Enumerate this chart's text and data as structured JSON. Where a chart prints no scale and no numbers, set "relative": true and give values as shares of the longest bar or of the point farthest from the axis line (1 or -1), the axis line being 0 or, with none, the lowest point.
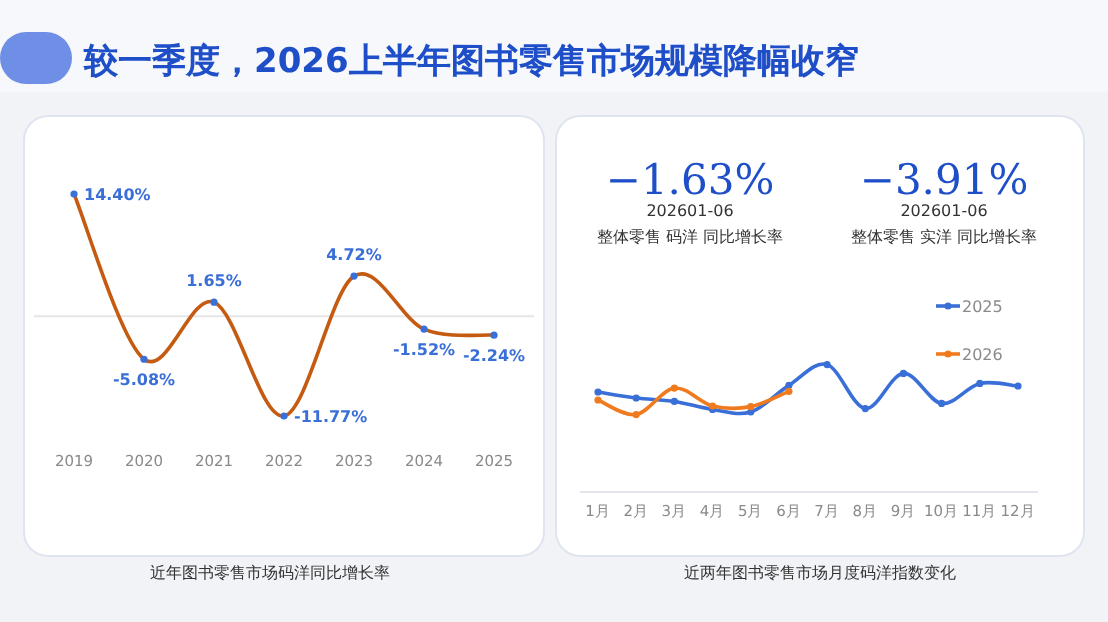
{
  "chart_data": [
    {
      "type": "line",
      "title": "较一季度，2026上半年图书零售市场规模降幅收窄",
      "categories": [
        "2019",
        "2020",
        "2021",
        "2022",
        "2023",
        "2024",
        "2025"
      ],
      "series": [
        {
          "color": "#c55a11",
          "values": [
            14.4,
            -5.08,
            1.65,
            -11.77,
            4.72,
            -1.52,
            -2.24
          ],
          "value_labels": [
            "14.40%",
            "-5.08%",
            "1.65%",
            "-11.77%",
            "4.72%",
            "-1.52%",
            "-2.24%"
          ]
        }
      ],
      "marker": "circle",
      "ref_lines": [
        {
          "axis": "y",
          "value": 0,
          "color": "#e6e6e6"
        }
      ],
      "annotations": [
        "近年图书零售市场码洋同比增长率"
      ]
    },
    {
      "type": "other",
      "annotations": [
        "−1.63%",
        "202601-06",
        "整体零售 码洋 同比增长率",
        "−3.91%",
        "202601-06",
        "整体零售 实洋 同比增长率"
      ]
    },
    {
      "type": "line",
      "relative": true,
      "categories": [
        "1月",
        "2月",
        "3月",
        "4月",
        "5月",
        "6月",
        "7月",
        "8月",
        "9月",
        "10月",
        "11月",
        "12月"
      ],
      "series": [
        {
          "name": "2025",
          "color": "#3a6fd8",
          "values": [
            0.785,
            0.738,
            0.711,
            0.648,
            0.628,
            0.837,
            1,
            0.655,
            0.931,
            0.695,
            0.852,
            0.832
          ]
        },
        {
          "name": "2026",
          "color": "#f07b1f",
          "values": [
            0.722,
            0.608,
            0.816,
            0.675,
            0.67,
            0.79,
            null,
            null,
            null,
            null,
            null,
            null
          ]
        }
      ],
      "marker": "circle",
      "legend": "top right",
      "annotations": [
        "近两年图书零售市场月度码洋指数变化"
      ]
    }
  ]
}
